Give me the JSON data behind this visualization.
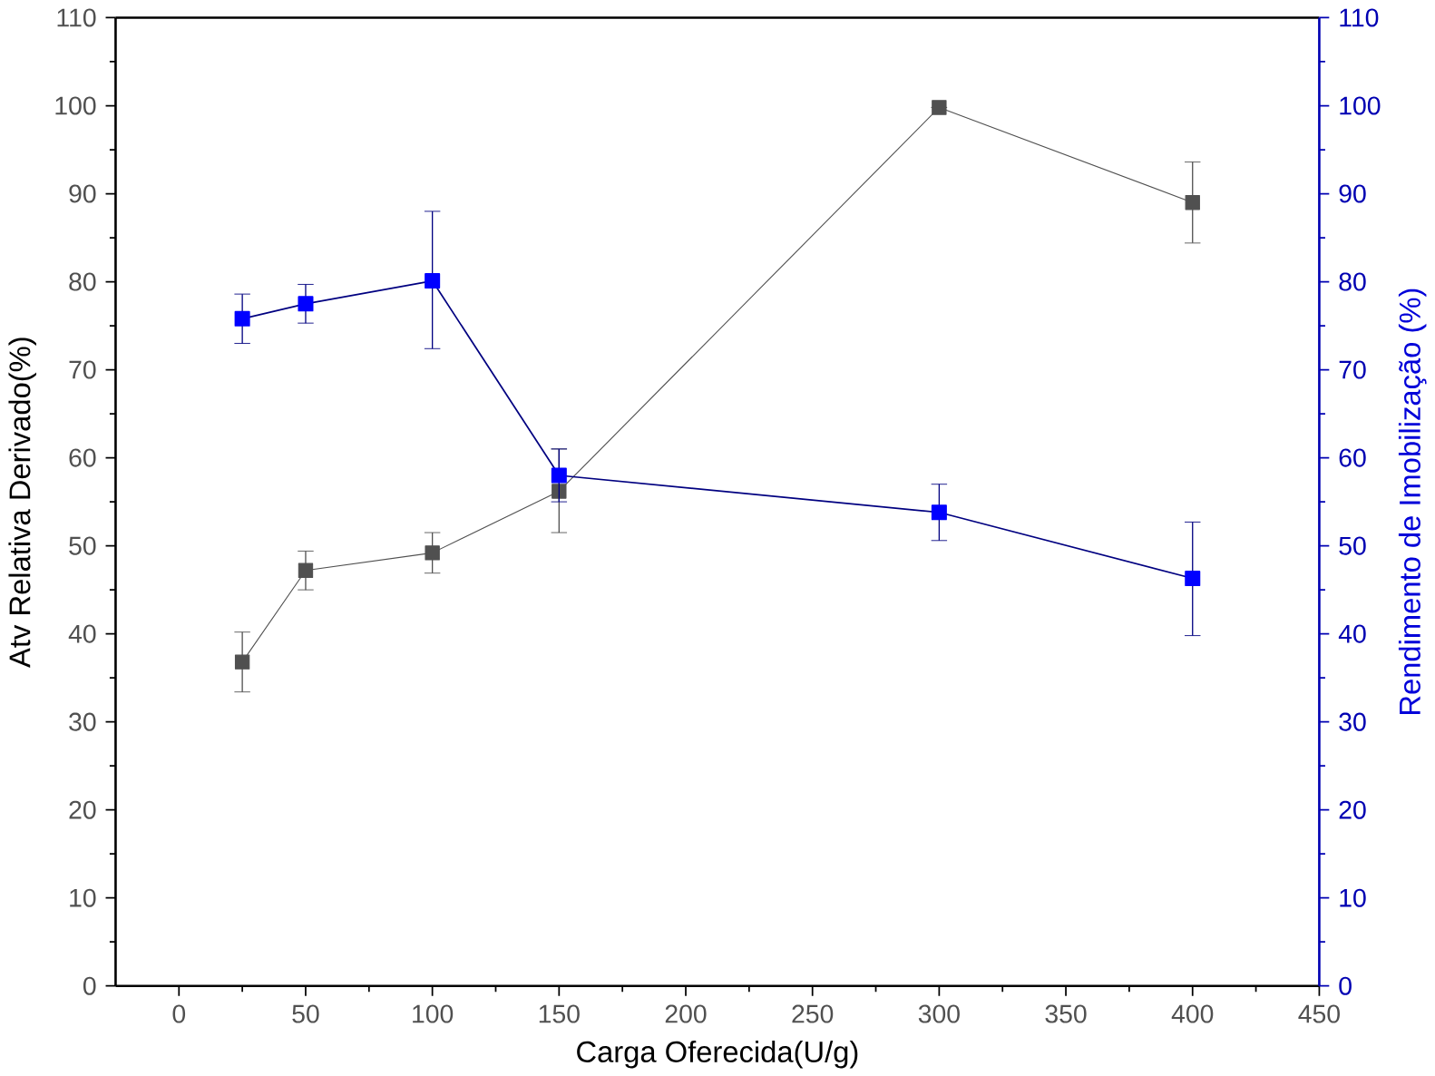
{
  "chart_data": {
    "type": "line",
    "xlabel": "Carga Oferecida(U/g)",
    "ylabel": "Atv Relativa Derivado(%)",
    "y2label": "Rendimento de Imobilização (%)",
    "x": [
      25,
      50,
      100,
      150,
      300,
      400
    ],
    "series": [
      {
        "color": "#505050",
        "values": [
          36.8,
          47.2,
          49.2,
          56.2,
          99.8,
          89.0
        ],
        "errors": [
          3.4,
          2.2,
          2.3,
          [
            51.5,
            61.0
          ],
          null,
          4.6
        ]
      },
      {
        "color": "#0000ff",
        "axis": "y2",
        "values": [
          75.8,
          77.5,
          80.1,
          58.0,
          53.8,
          46.3
        ],
        "errors": [
          2.8,
          2.2,
          [
            72.4,
            88.0
          ],
          3.0,
          3.2,
          [
            39.8,
            52.7
          ]
        ]
      }
    ],
    "xlim": [
      -25,
      450
    ],
    "xticks": [
      0,
      50,
      100,
      150,
      200,
      250,
      300,
      350,
      400,
      450
    ],
    "ylim": [
      0,
      110
    ],
    "yticks": [
      0,
      10,
      20,
      30,
      40,
      50,
      60,
      70,
      80,
      90,
      100,
      110
    ],
    "y2lim": [
      0,
      110
    ],
    "y2ticks": [
      0,
      10,
      20,
      30,
      40,
      50,
      60,
      70,
      80,
      90,
      100,
      110
    ],
    "marker": "square",
    "line_style": "solid",
    "grid": false
  }
}
